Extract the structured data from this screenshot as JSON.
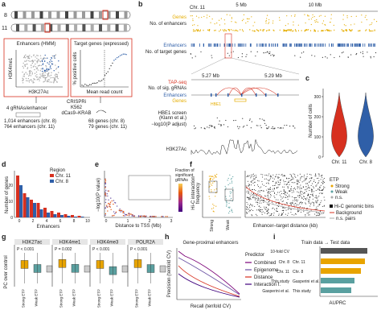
{
  "panels": {
    "a": {
      "label": "a",
      "chromosomes": [
        "8",
        "11"
      ],
      "enhancers_box": "Enhancers (HMM)",
      "targets_box": "Target genes (expressed)",
      "y_axis_left": "H3K4me1",
      "x_axis_left": "H3K27Ac",
      "y_axis_right": "% positive cells",
      "x_axis_right": "Mean read count",
      "grnas": "4 gRNAs/enhancer",
      "screen": [
        "CRISPRi",
        "K562",
        "dCas9–KRAB"
      ],
      "enhancer_counts": [
        "1,014 enhancers (chr. 8)",
        "764 enhancers (chr. 11)"
      ],
      "gene_counts": [
        "68 genes (chr. 8)",
        "79 genes (chr. 11)"
      ]
    },
    "b": {
      "label": "b",
      "chromosome": "Chr. 11",
      "scale": [
        "5 Mb",
        "10 Mb"
      ],
      "tracks": [
        "Genes",
        "No. of enhancers",
        "Enhancers",
        "No. of target genes"
      ],
      "zoom_scale": [
        "5.27 Mb",
        "5.29 Mb"
      ],
      "zoom_tracks": [
        "TAP-seq",
        "No. of sig. gRNAs",
        "Enhancers",
        "Genes"
      ],
      "gene": "HBE1",
      "screen": [
        "HBE1 screen",
        "(Klann et al.)",
        "−log10(P adjust)"
      ],
      "chip": "H3K27Ac"
    },
    "c": {
      "label": "c",
      "y_axis": "Number of cells",
      "yticks": [
        "0",
        "100",
        "200",
        "300"
      ],
      "categories": [
        "Chr. 11",
        "Chr. 8"
      ]
    },
    "d": {
      "label": "d",
      "legend_title": "Region",
      "legend": [
        "Chr. 11",
        "Chr. 8"
      ],
      "y_axis": "Number of genes",
      "x_axis": "Enhancers",
      "xticks": [
        "0",
        "2",
        "4",
        "6",
        "8",
        "10"
      ],
      "yticks": [
        "0",
        "10",
        "20"
      ]
    },
    "e": {
      "label": "e",
      "y_axis": "−log10(P value)",
      "x_axis": "Distance to TSS (Mb)",
      "xticks": [
        "0",
        "1",
        "2",
        "3"
      ],
      "legend_title": [
        "Fraction of",
        "significant",
        "gRNAs"
      ]
    },
    "f": {
      "label": "f",
      "y_axis": [
        "Hi-C interaction",
        "frequency"
      ],
      "categories": [
        "Strong",
        "Weak"
      ],
      "legend_title": "ETP",
      "legend": [
        "Strong",
        "Weak",
        "n.s."
      ],
      "legend2": [
        "Hi-C genomic bins",
        "Background",
        "n.s. pairs"
      ],
      "x_axis": "Enhancer–target distance (kb)"
    },
    "g": {
      "label": "g",
      "marks": [
        "H3K27ac",
        "H3K4me1",
        "H3K4me3",
        "POLR2A"
      ],
      "p_values": [
        "P < 0.001",
        "P = 0.002",
        "P < 0.001",
        "P < 0.001"
      ],
      "y_axis": "PC over control",
      "categories": [
        "Strong ETP",
        "Weak ETP"
      ]
    },
    "h": {
      "label": "h",
      "title": "Gene-proximal enhancers",
      "y_axis": "Precision (tenfold CV)",
      "x_axis": "Recall (tenfold CV)",
      "legend_title": "Predictor",
      "legend": [
        "Combined",
        "Epigenome",
        "Distance",
        "Interaction f."
      ]
    },
    "i": {
      "label": "i",
      "title": "Train data → Test data",
      "rows": [
        [
          "10-fold CV",
          ""
        ],
        [
          "Chr. 8",
          "Chr. 11"
        ],
        [
          "Chr. 11",
          "Chr. 8"
        ],
        [
          "This study",
          "Gasperini et al."
        ],
        [
          "Gasperini et al.",
          "This study"
        ]
      ],
      "x_axis": "AUPRC"
    }
  }
}
